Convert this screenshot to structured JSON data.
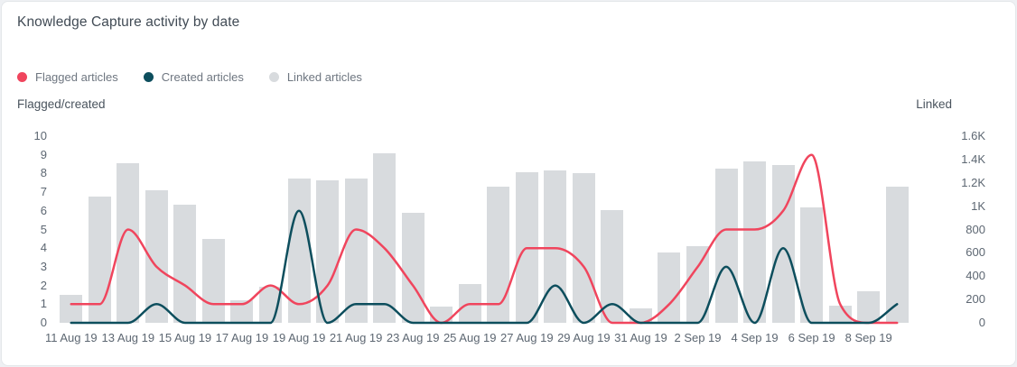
{
  "card": {
    "title": "Knowledge Capture activity by date"
  },
  "legend": {
    "items": [
      {
        "label": "Flagged articles",
        "color": "#f0455d"
      },
      {
        "label": "Created articles",
        "color": "#0d4e5d"
      },
      {
        "label": "Linked articles",
        "color": "#d8dbde"
      }
    ]
  },
  "axes": {
    "left_title": "Flagged/created",
    "right_title": "Linked",
    "left_ticks": [
      "10",
      "9",
      "8",
      "7",
      "6",
      "5",
      "4",
      "3",
      "2",
      "1",
      "0"
    ],
    "right_ticks": [
      "1.6K",
      "1.4K",
      "1.2K",
      "1K",
      "800",
      "600",
      "400",
      "200",
      "0"
    ]
  },
  "chart_data": {
    "type": "bar+line",
    "title": "Knowledge Capture activity by date",
    "categories": [
      "11 Aug 19",
      "12 Aug 19",
      "13 Aug 19",
      "14 Aug 19",
      "15 Aug 19",
      "16 Aug 19",
      "17 Aug 19",
      "18 Aug 19",
      "19 Aug 19",
      "20 Aug 19",
      "21 Aug 19",
      "22 Aug 19",
      "23 Aug 19",
      "24 Aug 19",
      "25 Aug 19",
      "26 Aug 19",
      "27 Aug 19",
      "28 Aug 19",
      "29 Aug 19",
      "30 Aug 19",
      "31 Aug 19",
      "1 Sep 19",
      "2 Sep 19",
      "3 Sep 19",
      "4 Sep 19",
      "5 Sep 19",
      "6 Sep 19",
      "7 Sep 19",
      "8 Sep 19",
      "9 Sep 19"
    ],
    "x_tick_labels": [
      "11 Aug 19",
      "13 Aug 19",
      "15 Aug 19",
      "17 Aug 19",
      "19 Aug 19",
      "21 Aug 19",
      "23 Aug 19",
      "25 Aug 19",
      "27 Aug 19",
      "29 Aug 19",
      "31 Aug 19",
      "2 Sep 19",
      "4 Sep 19",
      "6 Sep 19",
      "8 Sep 19"
    ],
    "left_axis": {
      "label": "Flagged/created",
      "range": [
        0,
        10
      ]
    },
    "right_axis": {
      "label": "Linked",
      "range": [
        0,
        1600
      ]
    },
    "grid": false,
    "legend_position": "top-left",
    "series": [
      {
        "name": "Flagged articles",
        "type": "line",
        "axis": "left",
        "color": "#f0455d",
        "values": [
          1,
          1,
          5,
          3,
          2,
          1,
          1,
          2,
          1,
          2,
          5,
          4,
          2,
          0,
          1,
          1,
          4,
          4,
          3,
          0,
          0,
          1,
          3,
          5,
          5,
          6,
          9,
          1,
          0,
          0
        ]
      },
      {
        "name": "Created articles",
        "type": "line",
        "axis": "left",
        "color": "#0d4e5d",
        "values": [
          0,
          0,
          0,
          1,
          0,
          0,
          0,
          0,
          6,
          0,
          1,
          1,
          0,
          0,
          0,
          0,
          0,
          2,
          0,
          1,
          0,
          0,
          0,
          3,
          0,
          4,
          0,
          0,
          0,
          1
        ]
      },
      {
        "name": "Linked articles",
        "type": "bar",
        "axis": "right",
        "color": "#d8dbde",
        "values": [
          240,
          1080,
          1370,
          1140,
          1010,
          720,
          190,
          310,
          1240,
          1220,
          1240,
          1450,
          940,
          140,
          330,
          1170,
          1290,
          1310,
          1280,
          970,
          120,
          600,
          660,
          1320,
          1380,
          1350,
          990,
          150,
          270,
          1170
        ]
      }
    ]
  }
}
